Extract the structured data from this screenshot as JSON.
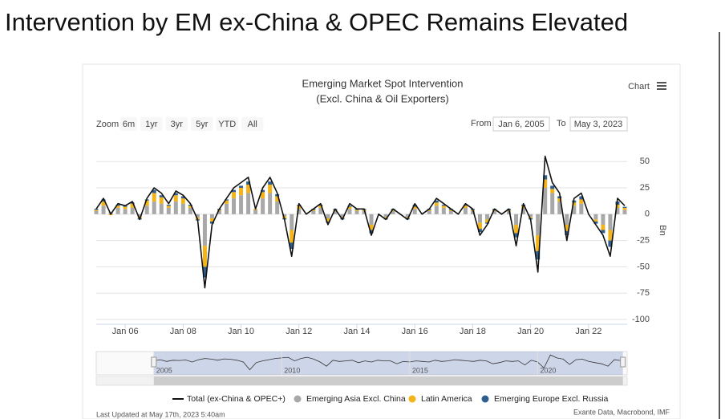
{
  "page_title": "Intervention by EM ex-China & OPEC Remains Elevated",
  "chart_data": {
    "type": "bar",
    "title": "Emerging Market Spot Intervention",
    "subtitle": "(Excl. China & Oil Exporters)",
    "menu_label": "Chart",
    "zoom": {
      "label": "Zoom",
      "buttons": [
        "6m",
        "1yr",
        "3yr",
        "5yr",
        "YTD",
        "All"
      ]
    },
    "range": {
      "from_label": "From",
      "from": "Jan 6, 2005",
      "to_label": "To",
      "to": "May 3, 2023"
    },
    "y_axis_label": "Bn",
    "x": [
      "2005-01",
      "2005-04",
      "2005-07",
      "2005-10",
      "2006-01",
      "2006-04",
      "2006-07",
      "2006-10",
      "2007-01",
      "2007-04",
      "2007-07",
      "2007-10",
      "2008-01",
      "2008-04",
      "2008-07",
      "2008-10",
      "2009-01",
      "2009-04",
      "2009-07",
      "2009-10",
      "2010-01",
      "2010-04",
      "2010-07",
      "2010-10",
      "2011-01",
      "2011-04",
      "2011-07",
      "2011-10",
      "2012-01",
      "2012-04",
      "2012-07",
      "2012-10",
      "2013-01",
      "2013-04",
      "2013-07",
      "2013-10",
      "2014-01",
      "2014-04",
      "2014-07",
      "2014-10",
      "2015-01",
      "2015-04",
      "2015-07",
      "2015-10",
      "2016-01",
      "2016-04",
      "2016-07",
      "2016-10",
      "2017-01",
      "2017-04",
      "2017-07",
      "2017-10",
      "2018-01",
      "2018-04",
      "2018-07",
      "2018-10",
      "2019-01",
      "2019-04",
      "2019-07",
      "2019-10",
      "2020-01",
      "2020-04",
      "2020-07",
      "2020-10",
      "2021-01",
      "2021-04",
      "2021-07",
      "2021-10",
      "2022-01",
      "2022-04",
      "2022-07",
      "2022-10",
      "2023-01",
      "2023-04"
    ],
    "xlim": [
      "2005-01",
      "2023-05"
    ],
    "xticks": [
      {
        "value": "2006-01",
        "label": "Jan 06"
      },
      {
        "value": "2008-01",
        "label": "Jan 08"
      },
      {
        "value": "2010-01",
        "label": "Jan 10"
      },
      {
        "value": "2012-01",
        "label": "Jan 12"
      },
      {
        "value": "2014-01",
        "label": "Jan 14"
      },
      {
        "value": "2016-01",
        "label": "Jan 16"
      },
      {
        "value": "2018-01",
        "label": "Jan 18"
      },
      {
        "value": "2020-01",
        "label": "Jan 20"
      },
      {
        "value": "2022-01",
        "label": "Jan 22"
      }
    ],
    "ylim": [
      -100,
      70
    ],
    "yticks": [
      50,
      25,
      0,
      -25,
      -50,
      -75,
      -100
    ],
    "grid": true,
    "series": [
      {
        "name": "Total (ex-China & OPEC+)",
        "type": "line",
        "color": "#111111",
        "values": [
          5,
          15,
          0,
          10,
          8,
          12,
          -5,
          15,
          25,
          20,
          10,
          22,
          18,
          10,
          -5,
          -70,
          -10,
          5,
          15,
          25,
          30,
          35,
          5,
          25,
          35,
          20,
          -5,
          -40,
          10,
          0,
          5,
          10,
          -10,
          5,
          -5,
          10,
          5,
          5,
          -20,
          0,
          -5,
          5,
          0,
          -5,
          10,
          0,
          5,
          15,
          10,
          5,
          0,
          10,
          5,
          -20,
          -10,
          5,
          0,
          5,
          -30,
          10,
          -5,
          -55,
          55,
          30,
          20,
          -25,
          15,
          20,
          0,
          -10,
          -20,
          -40,
          15,
          8
        ]
      },
      {
        "name": "Emerging Asia Excl. China",
        "type": "bar",
        "color": "#a8a8a8",
        "values": [
          3,
          8,
          2,
          6,
          5,
          6,
          -2,
          8,
          12,
          10,
          6,
          12,
          10,
          6,
          -3,
          -30,
          -4,
          3,
          10,
          15,
          18,
          20,
          4,
          15,
          20,
          12,
          -2,
          -15,
          5,
          0,
          3,
          6,
          -4,
          3,
          -3,
          5,
          3,
          3,
          -10,
          0,
          -3,
          3,
          0,
          -3,
          5,
          0,
          3,
          8,
          6,
          3,
          0,
          6,
          3,
          -8,
          -5,
          3,
          0,
          3,
          -10,
          6,
          -3,
          -20,
          25,
          20,
          12,
          -10,
          8,
          10,
          0,
          -5,
          -10,
          -15,
          6,
          4
        ]
      },
      {
        "name": "Latin America",
        "type": "bar",
        "color": "#f2b418",
        "values": [
          1,
          4,
          -1,
          2,
          2,
          4,
          -2,
          5,
          8,
          6,
          2,
          6,
          5,
          2,
          -2,
          -20,
          -3,
          1,
          3,
          6,
          7,
          8,
          1,
          6,
          8,
          5,
          -2,
          -12,
          3,
          0,
          1,
          2,
          -3,
          1,
          -1,
          2,
          1,
          1,
          -5,
          0,
          -1,
          1,
          0,
          -1,
          2,
          0,
          1,
          3,
          2,
          1,
          0,
          2,
          1,
          -6,
          -3,
          1,
          0,
          1,
          -8,
          2,
          -1,
          -15,
          8,
          4,
          3,
          -6,
          3,
          4,
          0,
          -2,
          -5,
          -10,
          3,
          2
        ]
      },
      {
        "name": "Emerging Europe Excl. Russia",
        "type": "bar",
        "color": "#2f5f8f",
        "values": [
          1,
          2,
          0,
          1,
          1,
          1,
          -1,
          1,
          3,
          2,
          1,
          2,
          2,
          1,
          -1,
          -10,
          -2,
          1,
          1,
          2,
          2,
          3,
          0,
          2,
          3,
          2,
          -1,
          -6,
          1,
          0,
          1,
          1,
          -1,
          1,
          -1,
          1,
          1,
          1,
          -3,
          0,
          -1,
          1,
          0,
          -1,
          2,
          0,
          1,
          2,
          1,
          1,
          0,
          1,
          1,
          -3,
          -1,
          1,
          0,
          1,
          -4,
          1,
          -1,
          -8,
          4,
          3,
          2,
          -4,
          2,
          3,
          0,
          -2,
          -3,
          -6,
          3,
          1
        ]
      }
    ],
    "navigator": {
      "xlim": [
        "2002-10",
        "2023-07"
      ],
      "xticks": [
        {
          "value": "2005-01",
          "label": "2005"
        },
        {
          "value": "2010-01",
          "label": "2010"
        },
        {
          "value": "2015-01",
          "label": "2015"
        },
        {
          "value": "2020-01",
          "label": "2020"
        }
      ]
    },
    "footer_left": "Last Updated at May 17th, 2023 5:40am",
    "footer_right": "Exante Data, Macrobond, IMF"
  }
}
